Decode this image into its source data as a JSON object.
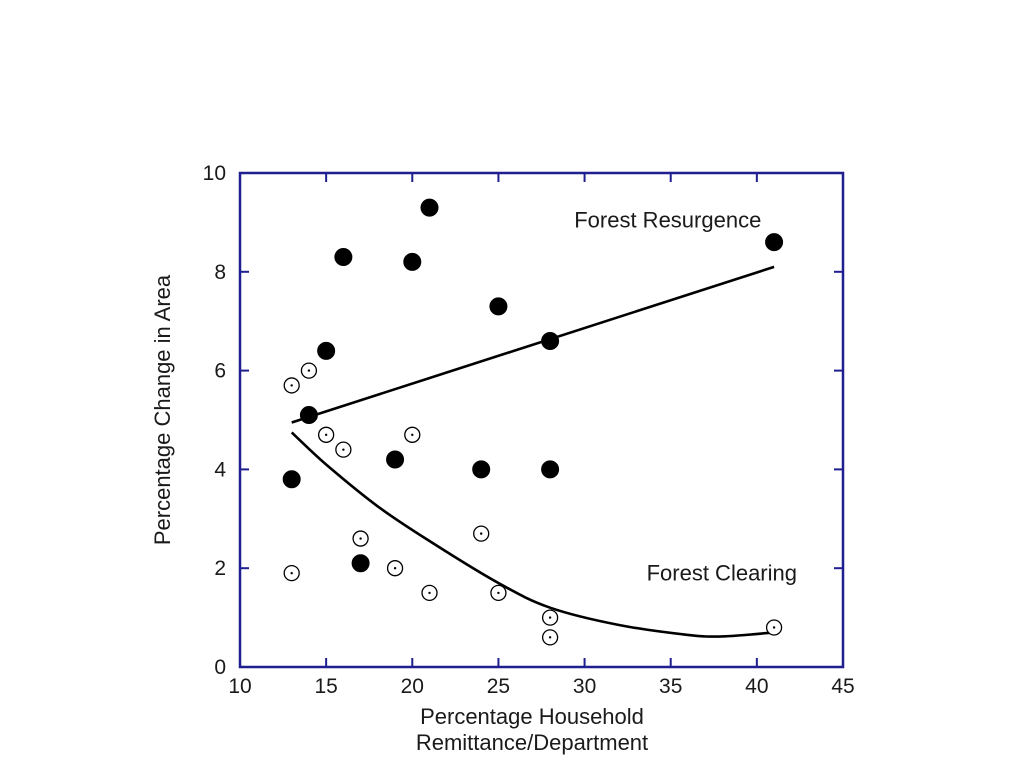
{
  "chart_data": {
    "type": "scatter",
    "title": "",
    "xlabel": [
      "Percentage Household",
      "Remittance/Department"
    ],
    "ylabel": "Percentage Change in Area",
    "xlim": [
      10,
      45
    ],
    "ylim": [
      0,
      10
    ],
    "xticks": [
      10,
      15,
      20,
      25,
      30,
      35,
      40,
      45
    ],
    "yticks": [
      0,
      2,
      4,
      6,
      8,
      10
    ],
    "grid": false,
    "frame_color": "#1f1f8f",
    "series": [
      {
        "name": "Forest Resurgence",
        "marker": "filled-circle",
        "color": "#000000",
        "points": [
          {
            "x": 13,
            "y": 3.8
          },
          {
            "x": 14,
            "y": 5.1
          },
          {
            "x": 15,
            "y": 6.4
          },
          {
            "x": 16,
            "y": 8.3
          },
          {
            "x": 17,
            "y": 2.1
          },
          {
            "x": 19,
            "y": 4.2
          },
          {
            "x": 20,
            "y": 8.2
          },
          {
            "x": 21,
            "y": 9.3
          },
          {
            "x": 24,
            "y": 4.0
          },
          {
            "x": 25,
            "y": 7.3
          },
          {
            "x": 28,
            "y": 6.6
          },
          {
            "x": 28,
            "y": 4.0
          },
          {
            "x": 41,
            "y": 8.6
          }
        ]
      },
      {
        "name": "Forest Clearing",
        "marker": "open-circle-dot",
        "color": "#000000",
        "points": [
          {
            "x": 13,
            "y": 5.7
          },
          {
            "x": 13,
            "y": 1.9
          },
          {
            "x": 14,
            "y": 6.0
          },
          {
            "x": 15,
            "y": 4.7
          },
          {
            "x": 16,
            "y": 4.4
          },
          {
            "x": 17,
            "y": 2.6
          },
          {
            "x": 19,
            "y": 2.0
          },
          {
            "x": 20,
            "y": 4.7
          },
          {
            "x": 21,
            "y": 1.5
          },
          {
            "x": 24,
            "y": 2.7
          },
          {
            "x": 25,
            "y": 1.5
          },
          {
            "x": 28,
            "y": 1.0
          },
          {
            "x": 28,
            "y": 0.6
          },
          {
            "x": 41,
            "y": 0.8
          }
        ]
      }
    ],
    "trendlines": [
      {
        "series": "Forest Resurgence",
        "kind": "linear",
        "points": [
          {
            "x": 13,
            "y": 4.95
          },
          {
            "x": 41,
            "y": 8.1
          }
        ]
      },
      {
        "series": "Forest Clearing",
        "kind": "curve",
        "points": [
          {
            "x": 13,
            "y": 4.75
          },
          {
            "x": 15,
            "y": 4.1
          },
          {
            "x": 18,
            "y": 3.25
          },
          {
            "x": 21,
            "y": 2.55
          },
          {
            "x": 25,
            "y": 1.7
          },
          {
            "x": 28,
            "y": 1.2
          },
          {
            "x": 32,
            "y": 0.85
          },
          {
            "x": 36,
            "y": 0.65
          },
          {
            "x": 38,
            "y": 0.62
          },
          {
            "x": 41,
            "y": 0.7
          }
        ]
      }
    ],
    "annotations": [
      {
        "text": "Forest Resurgence",
        "x": 29.4,
        "y": 8.9
      },
      {
        "text": "Forest Clearing",
        "x": 33.6,
        "y": 1.75
      }
    ]
  }
}
